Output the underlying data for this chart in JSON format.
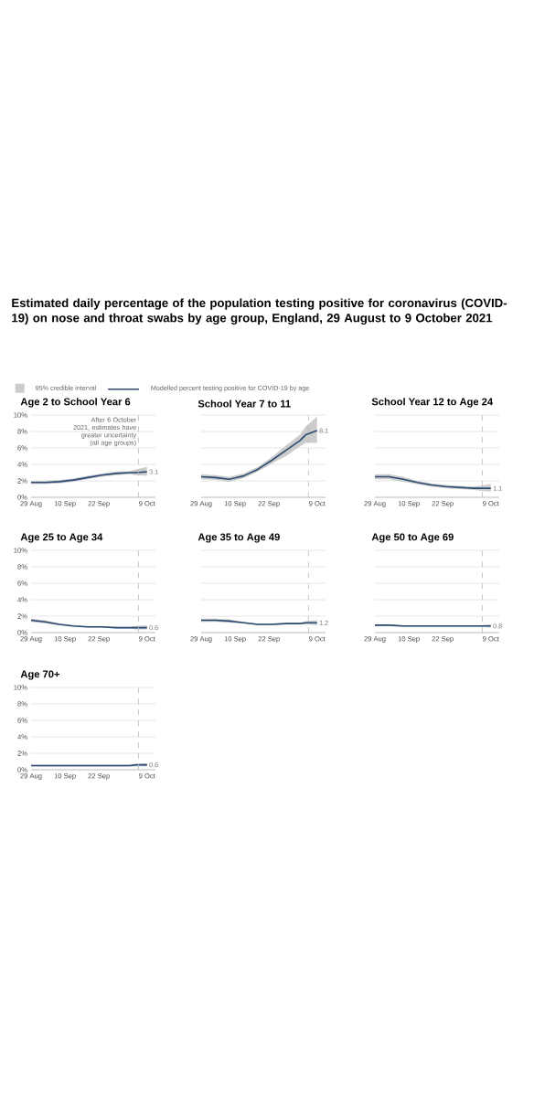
{
  "chart_data": [
    {
      "type": "line",
      "title": "Age 2 to School Year 6",
      "annotations": [
        "Estimated daily percentage of the population testing positive for coronavirus (COVID-19) on nose and throat swabs by age group, England, 29 August to 9 October 2021",
        "95% credible interval"
      ],
      "legend": "top right",
      "grid": "y",
      "x": [
        "2021-08-29",
        "2021-09-03",
        "2021-09-08",
        "2021-09-13",
        "2021-09-18",
        "2021-09-23",
        "2021-09-28",
        "2021-10-03",
        "2021-10-05",
        "2021-10-09"
      ],
      "series": [
        {
          "name": "Modelled percent testing positive for COVID-19 by age",
          "color": "#2c4a73",
          "values": [
            1.8,
            1.8,
            1.9,
            2.1,
            2.4,
            2.7,
            2.9,
            3.0,
            3.0,
            3.1
          ],
          "lower": [
            1.6,
            1.6,
            1.7,
            1.9,
            2.2,
            2.5,
            2.7,
            2.8,
            2.7,
            2.6
          ],
          "upper": [
            2.0,
            2.0,
            2.1,
            2.3,
            2.6,
            2.9,
            3.1,
            3.2,
            3.4,
            3.7
          ],
          "value_labels": [
            null,
            null,
            null,
            null,
            null,
            null,
            null,
            null,
            null,
            "3.1"
          ]
        }
      ],
      "ref_lines": [
        {
          "axis": "x",
          "value": "2021-10-06",
          "label": "After 6 October 2021, estimates have greater uncertainty (all age groups)",
          "color": "#bbbbbb",
          "line_style": "dashed"
        }
      ],
      "xlim": [
        "2021-08-29",
        "2021-10-12"
      ],
      "xticks": [
        {
          "value": "2021-08-29",
          "label": "29 Aug"
        },
        {
          "value": "2021-09-10",
          "label": "10 Sep"
        },
        {
          "value": "2021-09-22",
          "label": "22 Sep"
        },
        {
          "value": "2021-10-09",
          "label": "9 Oct"
        }
      ],
      "ylim": [
        0,
        10
      ],
      "yticks": [
        {
          "value": 0,
          "label": "0%"
        },
        {
          "value": 2,
          "label": "2%"
        },
        {
          "value": 4,
          "label": "4%"
        },
        {
          "value": 6,
          "label": "6%"
        },
        {
          "value": 8,
          "label": "8%"
        },
        {
          "value": 10,
          "label": "10%"
        }
      ]
    },
    {
      "type": "line",
      "title": "School Year 7 to 11",
      "grid": "y",
      "tick_labels": "x",
      "x": [
        "2021-08-29",
        "2021-09-03",
        "2021-09-08",
        "2021-09-13",
        "2021-09-18",
        "2021-09-23",
        "2021-09-28",
        "2021-10-03",
        "2021-10-05",
        "2021-10-09"
      ],
      "series": [
        {
          "color": "#2c4a73",
          "values": [
            2.5,
            2.4,
            2.2,
            2.6,
            3.4,
            4.5,
            5.7,
            6.9,
            7.6,
            8.1
          ],
          "lower": [
            2.2,
            2.1,
            1.9,
            2.3,
            3.1,
            4.1,
            5.0,
            6.2,
            6.6,
            6.6
          ],
          "upper": [
            2.8,
            2.7,
            2.5,
            2.9,
            3.7,
            4.9,
            6.3,
            7.6,
            8.6,
            9.8
          ],
          "value_labels": [
            null,
            null,
            null,
            null,
            null,
            null,
            null,
            null,
            null,
            "8.1"
          ]
        }
      ],
      "ref_lines": [
        {
          "axis": "x",
          "value": "2021-10-06",
          "color": "#bbbbbb",
          "line_style": "dashed"
        }
      ],
      "xlim": [
        "2021-08-29",
        "2021-10-12"
      ],
      "xticks": [
        {
          "value": "2021-08-29",
          "label": "29 Aug"
        },
        {
          "value": "2021-09-10",
          "label": "10 Sep"
        },
        {
          "value": "2021-09-22",
          "label": "22 Sep"
        },
        {
          "value": "2021-10-09",
          "label": "9 Oct"
        }
      ],
      "ylim": [
        0,
        10
      ],
      "yticks": [
        {
          "value": 0,
          "label": null
        },
        {
          "value": 2,
          "label": null
        },
        {
          "value": 4,
          "label": null
        },
        {
          "value": 6,
          "label": null
        },
        {
          "value": 8,
          "label": null
        },
        {
          "value": 10,
          "label": null
        }
      ]
    },
    {
      "type": "line",
      "title": "School Year 12 to Age 24",
      "grid": "y",
      "tick_labels": "x",
      "x": [
        "2021-08-29",
        "2021-09-03",
        "2021-09-08",
        "2021-09-13",
        "2021-09-18",
        "2021-09-23",
        "2021-09-28",
        "2021-10-03",
        "2021-10-05",
        "2021-10-09"
      ],
      "series": [
        {
          "color": "#2c4a73",
          "values": [
            2.5,
            2.5,
            2.2,
            1.8,
            1.5,
            1.3,
            1.2,
            1.1,
            1.1,
            1.1
          ],
          "lower": [
            2.2,
            2.2,
            1.9,
            1.6,
            1.3,
            1.1,
            1.0,
            0.9,
            0.8,
            0.7
          ],
          "upper": [
            2.8,
            2.8,
            2.5,
            2.0,
            1.7,
            1.5,
            1.4,
            1.3,
            1.4,
            1.6
          ],
          "value_labels": [
            null,
            null,
            null,
            null,
            null,
            null,
            null,
            null,
            null,
            "1.1"
          ]
        }
      ],
      "ref_lines": [
        {
          "axis": "x",
          "value": "2021-10-06",
          "color": "#bbbbbb",
          "line_style": "dashed"
        }
      ],
      "xlim": [
        "2021-08-29",
        "2021-10-12"
      ],
      "xticks": [
        {
          "value": "2021-08-29",
          "label": "29 Aug"
        },
        {
          "value": "2021-09-10",
          "label": "10 Sep"
        },
        {
          "value": "2021-09-22",
          "label": "22 Sep"
        },
        {
          "value": "2021-10-09",
          "label": "9 Oct"
        }
      ],
      "ylim": [
        0,
        10
      ],
      "yticks": [
        {
          "value": 0,
          "label": null
        },
        {
          "value": 2,
          "label": null
        },
        {
          "value": 4,
          "label": null
        },
        {
          "value": 6,
          "label": null
        },
        {
          "value": 8,
          "label": null
        },
        {
          "value": 10,
          "label": null
        }
      ]
    },
    {
      "type": "line",
      "title": "Age 25 to Age 34",
      "grid": "y",
      "x": [
        "2021-08-29",
        "2021-09-03",
        "2021-09-08",
        "2021-09-13",
        "2021-09-18",
        "2021-09-23",
        "2021-09-28",
        "2021-10-03",
        "2021-10-05",
        "2021-10-09"
      ],
      "series": [
        {
          "color": "#2c4a73",
          "values": [
            1.5,
            1.3,
            1.0,
            0.8,
            0.7,
            0.7,
            0.6,
            0.6,
            0.6,
            0.6
          ],
          "lower": [
            1.3,
            1.1,
            0.9,
            0.7,
            0.6,
            0.6,
            0.5,
            0.5,
            0.4,
            0.4
          ],
          "upper": [
            1.7,
            1.5,
            1.1,
            0.9,
            0.8,
            0.8,
            0.7,
            0.7,
            0.8,
            0.9
          ],
          "value_labels": [
            null,
            null,
            null,
            null,
            null,
            null,
            null,
            null,
            null,
            "0.6"
          ]
        }
      ],
      "ref_lines": [
        {
          "axis": "x",
          "value": "2021-10-06",
          "color": "#bbbbbb",
          "line_style": "dashed"
        }
      ],
      "xlim": [
        "2021-08-29",
        "2021-10-12"
      ],
      "xticks": [
        {
          "value": "2021-08-29",
          "label": "29 Aug"
        },
        {
          "value": "2021-09-10",
          "label": "10 Sep"
        },
        {
          "value": "2021-09-22",
          "label": "22 Sep"
        },
        {
          "value": "2021-10-09",
          "label": "9 Oct"
        }
      ],
      "ylim": [
        0,
        10
      ],
      "yticks": [
        {
          "value": 0,
          "label": "0%"
        },
        {
          "value": 2,
          "label": "2%"
        },
        {
          "value": 4,
          "label": "4%"
        },
        {
          "value": 6,
          "label": "6%"
        },
        {
          "value": 8,
          "label": "8%"
        },
        {
          "value": 10,
          "label": "10%"
        }
      ]
    },
    {
      "type": "line",
      "title": "Age 35 to Age 49",
      "grid": "y",
      "tick_labels": "x",
      "x": [
        "2021-08-29",
        "2021-09-03",
        "2021-09-08",
        "2021-09-13",
        "2021-09-18",
        "2021-09-23",
        "2021-09-28",
        "2021-10-03",
        "2021-10-05",
        "2021-10-09"
      ],
      "series": [
        {
          "color": "#2c4a73",
          "values": [
            1.5,
            1.5,
            1.4,
            1.2,
            1.0,
            1.0,
            1.1,
            1.1,
            1.2,
            1.2
          ],
          "lower": [
            1.3,
            1.3,
            1.2,
            1.1,
            0.9,
            0.9,
            1.0,
            1.0,
            1.0,
            0.9
          ],
          "upper": [
            1.7,
            1.7,
            1.6,
            1.3,
            1.1,
            1.1,
            1.2,
            1.2,
            1.4,
            1.5
          ],
          "value_labels": [
            null,
            null,
            null,
            null,
            null,
            null,
            null,
            null,
            null,
            "1.2"
          ]
        }
      ],
      "ref_lines": [
        {
          "axis": "x",
          "value": "2021-10-06",
          "color": "#bbbbbb",
          "line_style": "dashed"
        }
      ],
      "xlim": [
        "2021-08-29",
        "2021-10-12"
      ],
      "xticks": [
        {
          "value": "2021-08-29",
          "label": "29 Aug"
        },
        {
          "value": "2021-09-10",
          "label": "10 Sep"
        },
        {
          "value": "2021-09-22",
          "label": "22 Sep"
        },
        {
          "value": "2021-10-09",
          "label": "9 Oct"
        }
      ],
      "ylim": [
        0,
        10
      ],
      "yticks": [
        {
          "value": 0,
          "label": null
        },
        {
          "value": 2,
          "label": null
        },
        {
          "value": 4,
          "label": null
        },
        {
          "value": 6,
          "label": null
        },
        {
          "value": 8,
          "label": null
        },
        {
          "value": 10,
          "label": null
        }
      ]
    },
    {
      "type": "line",
      "title": "Age 50 to Age 69",
      "grid": "y",
      "tick_labels": "x",
      "x": [
        "2021-08-29",
        "2021-09-03",
        "2021-09-08",
        "2021-09-13",
        "2021-09-18",
        "2021-09-23",
        "2021-09-28",
        "2021-10-03",
        "2021-10-05",
        "2021-10-09"
      ],
      "series": [
        {
          "color": "#2c4a73",
          "values": [
            0.9,
            0.9,
            0.8,
            0.8,
            0.8,
            0.8,
            0.8,
            0.8,
            0.8,
            0.8
          ],
          "lower": [
            0.8,
            0.8,
            0.7,
            0.7,
            0.7,
            0.7,
            0.7,
            0.7,
            0.7,
            0.6
          ],
          "upper": [
            1.0,
            1.0,
            0.9,
            0.9,
            0.9,
            0.9,
            0.9,
            0.9,
            0.9,
            1.0
          ],
          "value_labels": [
            null,
            null,
            null,
            null,
            null,
            null,
            null,
            null,
            null,
            "0.8"
          ]
        }
      ],
      "ref_lines": [
        {
          "axis": "x",
          "value": "2021-10-06",
          "color": "#bbbbbb",
          "line_style": "dashed"
        }
      ],
      "xlim": [
        "2021-08-29",
        "2021-10-12"
      ],
      "xticks": [
        {
          "value": "2021-08-29",
          "label": "29 Aug"
        },
        {
          "value": "2021-09-10",
          "label": "10 Sep"
        },
        {
          "value": "2021-09-22",
          "label": "22 Sep"
        },
        {
          "value": "2021-10-09",
          "label": "9 Oct"
        }
      ],
      "ylim": [
        0,
        10
      ],
      "yticks": [
        {
          "value": 0,
          "label": null
        },
        {
          "value": 2,
          "label": null
        },
        {
          "value": 4,
          "label": null
        },
        {
          "value": 6,
          "label": null
        },
        {
          "value": 8,
          "label": null
        },
        {
          "value": 10,
          "label": null
        }
      ]
    },
    {
      "type": "line",
      "title": "Age 70+",
      "grid": "y",
      "x": [
        "2021-08-29",
        "2021-09-03",
        "2021-09-08",
        "2021-09-13",
        "2021-09-18",
        "2021-09-23",
        "2021-09-28",
        "2021-10-03",
        "2021-10-05",
        "2021-10-09"
      ],
      "series": [
        {
          "color": "#2c4a73",
          "values": [
            0.5,
            0.5,
            0.5,
            0.5,
            0.5,
            0.5,
            0.5,
            0.5,
            0.6,
            0.6
          ],
          "lower": [
            0.4,
            0.4,
            0.4,
            0.4,
            0.4,
            0.4,
            0.4,
            0.4,
            0.4,
            0.4
          ],
          "upper": [
            0.6,
            0.6,
            0.6,
            0.6,
            0.6,
            0.6,
            0.6,
            0.6,
            0.7,
            0.8
          ],
          "value_labels": [
            null,
            null,
            null,
            null,
            null,
            null,
            null,
            null,
            null,
            "0.6"
          ]
        }
      ],
      "ref_lines": [
        {
          "axis": "x",
          "value": "2021-10-06",
          "color": "#bbbbbb",
          "line_style": "dashed"
        }
      ],
      "xlim": [
        "2021-08-29",
        "2021-10-12"
      ],
      "xticks": [
        {
          "value": "2021-08-29",
          "label": "29 Aug"
        },
        {
          "value": "2021-09-10",
          "label": "10 Sep"
        },
        {
          "value": "2021-09-22",
          "label": "22 Sep"
        },
        {
          "value": "2021-10-09",
          "label": "9 Oct"
        }
      ],
      "ylim": [
        0,
        10
      ],
      "yticks": [
        {
          "value": 0,
          "label": "0%"
        },
        {
          "value": 2,
          "label": "2%"
        },
        {
          "value": 4,
          "label": "4%"
        },
        {
          "value": 6,
          "label": "6%"
        },
        {
          "value": 8,
          "label": "8%"
        },
        {
          "value": 10,
          "label": "10%"
        }
      ]
    }
  ]
}
